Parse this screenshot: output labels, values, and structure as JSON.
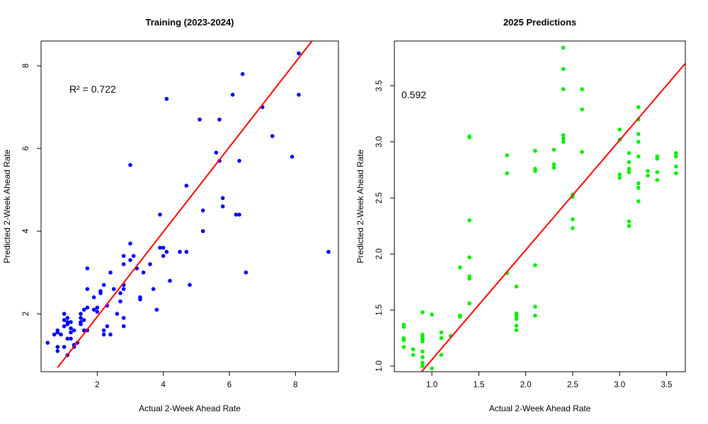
{
  "chart_data": [
    {
      "type": "scatter",
      "title": "Training (2023-2024)",
      "xlabel": "Actual 2-Week Ahead Rate",
      "ylabel": "Predicted 2-Week Ahead Rate",
      "annotation": "R² = 0.722",
      "xlim": [
        0.3,
        9.3
      ],
      "ylim": [
        0.6,
        8.6
      ],
      "xticks": [
        2,
        4,
        6,
        8
      ],
      "yticks": [
        2,
        4,
        6,
        8
      ],
      "point_color": "#0000ff",
      "line_color": "#ff0000",
      "fit_line": {
        "x1": 0.8,
        "y1": 0.7,
        "x2": 8.5,
        "y2": 8.6
      },
      "points": [
        [
          0.5,
          1.3
        ],
        [
          0.7,
          1.5
        ],
        [
          0.8,
          1.6
        ],
        [
          0.8,
          1.55
        ],
        [
          0.9,
          1.5
        ],
        [
          0.8,
          1.2
        ],
        [
          0.8,
          1.1
        ],
        [
          1.0,
          1.7
        ],
        [
          1.0,
          1.85
        ],
        [
          1.1,
          1.9
        ],
        [
          1.0,
          2.0
        ],
        [
          1.1,
          1.8
        ],
        [
          1.2,
          1.8
        ],
        [
          1.1,
          1.75
        ],
        [
          1.2,
          1.65
        ],
        [
          1.3,
          1.6
        ],
        [
          1.2,
          1.55
        ],
        [
          1.1,
          1.4
        ],
        [
          1.2,
          1.4
        ],
        [
          1.0,
          1.2
        ],
        [
          1.1,
          1.0
        ],
        [
          1.3,
          1.2
        ],
        [
          1.4,
          1.3
        ],
        [
          1.3,
          1.25
        ],
        [
          1.5,
          1.9
        ],
        [
          1.5,
          1.8
        ],
        [
          1.5,
          1.75
        ],
        [
          1.6,
          1.85
        ],
        [
          1.6,
          1.6
        ],
        [
          1.5,
          2.0
        ],
        [
          1.6,
          2.1
        ],
        [
          1.7,
          2.15
        ],
        [
          1.7,
          1.6
        ],
        [
          1.7,
          2.6
        ],
        [
          1.7,
          3.1
        ],
        [
          1.9,
          2.4
        ],
        [
          1.9,
          2.1
        ],
        [
          2.0,
          2.15
        ],
        [
          2.0,
          2.05
        ],
        [
          2.1,
          2.5
        ],
        [
          2.1,
          2.55
        ],
        [
          2.2,
          2.7
        ],
        [
          2.2,
          1.6
        ],
        [
          2.3,
          1.7
        ],
        [
          2.2,
          1.5
        ],
        [
          2.3,
          2.2
        ],
        [
          2.4,
          1.5
        ],
        [
          2.4,
          3.0
        ],
        [
          2.5,
          2.6
        ],
        [
          2.6,
          2.0
        ],
        [
          2.7,
          2.5
        ],
        [
          2.7,
          2.3
        ],
        [
          2.8,
          2.7
        ],
        [
          2.8,
          2.6
        ],
        [
          2.8,
          3.4
        ],
        [
          2.8,
          3.2
        ],
        [
          2.8,
          1.7
        ],
        [
          2.8,
          1.9
        ],
        [
          3.0,
          3.7
        ],
        [
          3.0,
          3.3
        ],
        [
          3.1,
          3.4
        ],
        [
          3.0,
          5.6
        ],
        [
          3.2,
          3.1
        ],
        [
          3.3,
          2.4
        ],
        [
          3.3,
          2.35
        ],
        [
          3.4,
          3.0
        ],
        [
          3.6,
          3.2
        ],
        [
          3.7,
          2.6
        ],
        [
          3.8,
          2.1
        ],
        [
          3.9,
          4.4
        ],
        [
          3.9,
          3.6
        ],
        [
          4.0,
          3.6
        ],
        [
          4.0,
          3.4
        ],
        [
          4.1,
          3.5
        ],
        [
          4.1,
          7.2
        ],
        [
          4.2,
          2.8
        ],
        [
          4.5,
          3.5
        ],
        [
          4.7,
          3.5
        ],
        [
          4.7,
          5.1
        ],
        [
          4.8,
          2.7
        ],
        [
          5.1,
          6.7
        ],
        [
          5.2,
          4.5
        ],
        [
          5.2,
          4.0
        ],
        [
          5.6,
          5.9
        ],
        [
          5.7,
          5.7
        ],
        [
          5.7,
          6.7
        ],
        [
          5.8,
          4.8
        ],
        [
          5.8,
          4.6
        ],
        [
          6.1,
          7.3
        ],
        [
          6.2,
          4.4
        ],
        [
          6.3,
          5.7
        ],
        [
          6.3,
          4.4
        ],
        [
          6.4,
          7.8
        ],
        [
          6.5,
          3.0
        ],
        [
          7.0,
          7.0
        ],
        [
          7.3,
          6.3
        ],
        [
          7.9,
          5.8
        ],
        [
          8.1,
          7.3
        ],
        [
          8.1,
          8.3
        ],
        [
          9.0,
          3.5
        ]
      ]
    },
    {
      "type": "scatter",
      "title": "2025 Predictions",
      "xlabel": "Actual 2-Week Ahead Rate",
      "ylabel": "Predicted 2-Week Ahead Rate",
      "annotation": "0.592",
      "xlim": [
        0.6,
        3.7
      ],
      "ylim": [
        0.95,
        3.9
      ],
      "xticks": [
        1.0,
        1.5,
        2.0,
        2.5,
        3.0,
        3.5
      ],
      "yticks": [
        1.0,
        1.5,
        2.0,
        2.5,
        3.0,
        3.5
      ],
      "point_color": "#00ee00",
      "line_color": "#ff0000",
      "fit_line": {
        "x1": 0.88,
        "y1": 0.94,
        "x2": 3.7,
        "y2": 3.7
      },
      "points": [
        [
          0.7,
          1.37
        ],
        [
          0.7,
          1.35
        ],
        [
          0.7,
          1.25
        ],
        [
          0.7,
          1.23
        ],
        [
          0.7,
          1.17
        ],
        [
          0.8,
          1.15
        ],
        [
          0.8,
          1.1
        ],
        [
          0.9,
          1.48
        ],
        [
          0.9,
          1.28
        ],
        [
          0.9,
          1.26
        ],
        [
          0.9,
          1.24
        ],
        [
          0.9,
          1.22
        ],
        [
          0.9,
          1.13
        ],
        [
          0.9,
          1.08
        ],
        [
          0.9,
          1.03
        ],
        [
          0.9,
          1.0
        ],
        [
          1.0,
          1.46
        ],
        [
          1.0,
          0.98
        ],
        [
          1.1,
          1.3
        ],
        [
          1.1,
          1.25
        ],
        [
          1.1,
          1.1
        ],
        [
          1.2,
          1.27
        ],
        [
          1.3,
          1.45
        ],
        [
          1.3,
          1.44
        ],
        [
          1.3,
          1.88
        ],
        [
          1.4,
          3.04
        ],
        [
          1.4,
          3.05
        ],
        [
          1.4,
          2.3
        ],
        [
          1.4,
          1.97
        ],
        [
          1.4,
          1.8
        ],
        [
          1.4,
          1.78
        ],
        [
          1.4,
          1.56
        ],
        [
          1.8,
          2.88
        ],
        [
          1.8,
          2.72
        ],
        [
          1.8,
          1.83
        ],
        [
          1.9,
          1.71
        ],
        [
          1.9,
          1.47
        ],
        [
          1.9,
          1.45
        ],
        [
          1.9,
          1.42
        ],
        [
          1.9,
          1.36
        ],
        [
          1.9,
          1.32
        ],
        [
          2.1,
          2.92
        ],
        [
          2.1,
          2.76
        ],
        [
          2.1,
          2.74
        ],
        [
          2.1,
          1.9
        ],
        [
          2.1,
          1.53
        ],
        [
          2.1,
          1.45
        ],
        [
          2.3,
          2.93
        ],
        [
          2.3,
          2.8
        ],
        [
          2.3,
          2.77
        ],
        [
          2.4,
          3.84
        ],
        [
          2.4,
          3.65
        ],
        [
          2.4,
          3.47
        ],
        [
          2.4,
          3.06
        ],
        [
          2.4,
          3.03
        ],
        [
          2.4,
          3.0
        ],
        [
          2.5,
          2.53
        ],
        [
          2.5,
          2.51
        ],
        [
          2.5,
          2.31
        ],
        [
          2.5,
          2.23
        ],
        [
          2.6,
          3.47
        ],
        [
          2.6,
          3.29
        ],
        [
          2.6,
          2.91
        ],
        [
          3.0,
          3.11
        ],
        [
          3.0,
          3.02
        ],
        [
          3.0,
          2.71
        ],
        [
          3.0,
          2.68
        ],
        [
          3.1,
          2.9
        ],
        [
          3.1,
          2.82
        ],
        [
          3.1,
          2.76
        ],
        [
          3.1,
          2.73
        ],
        [
          3.1,
          2.29
        ],
        [
          3.1,
          2.25
        ],
        [
          3.2,
          3.31
        ],
        [
          3.2,
          3.2
        ],
        [
          3.2,
          3.07
        ],
        [
          3.2,
          3.0
        ],
        [
          3.2,
          2.87
        ],
        [
          3.2,
          2.63
        ],
        [
          3.2,
          2.59
        ],
        [
          3.2,
          2.47
        ],
        [
          3.3,
          2.74
        ],
        [
          3.3,
          2.7
        ],
        [
          3.4,
          2.87
        ],
        [
          3.4,
          2.85
        ],
        [
          3.4,
          2.73
        ],
        [
          3.4,
          2.66
        ],
        [
          3.6,
          2.9
        ],
        [
          3.6,
          2.87
        ],
        [
          3.6,
          2.78
        ],
        [
          3.6,
          2.72
        ]
      ]
    }
  ]
}
